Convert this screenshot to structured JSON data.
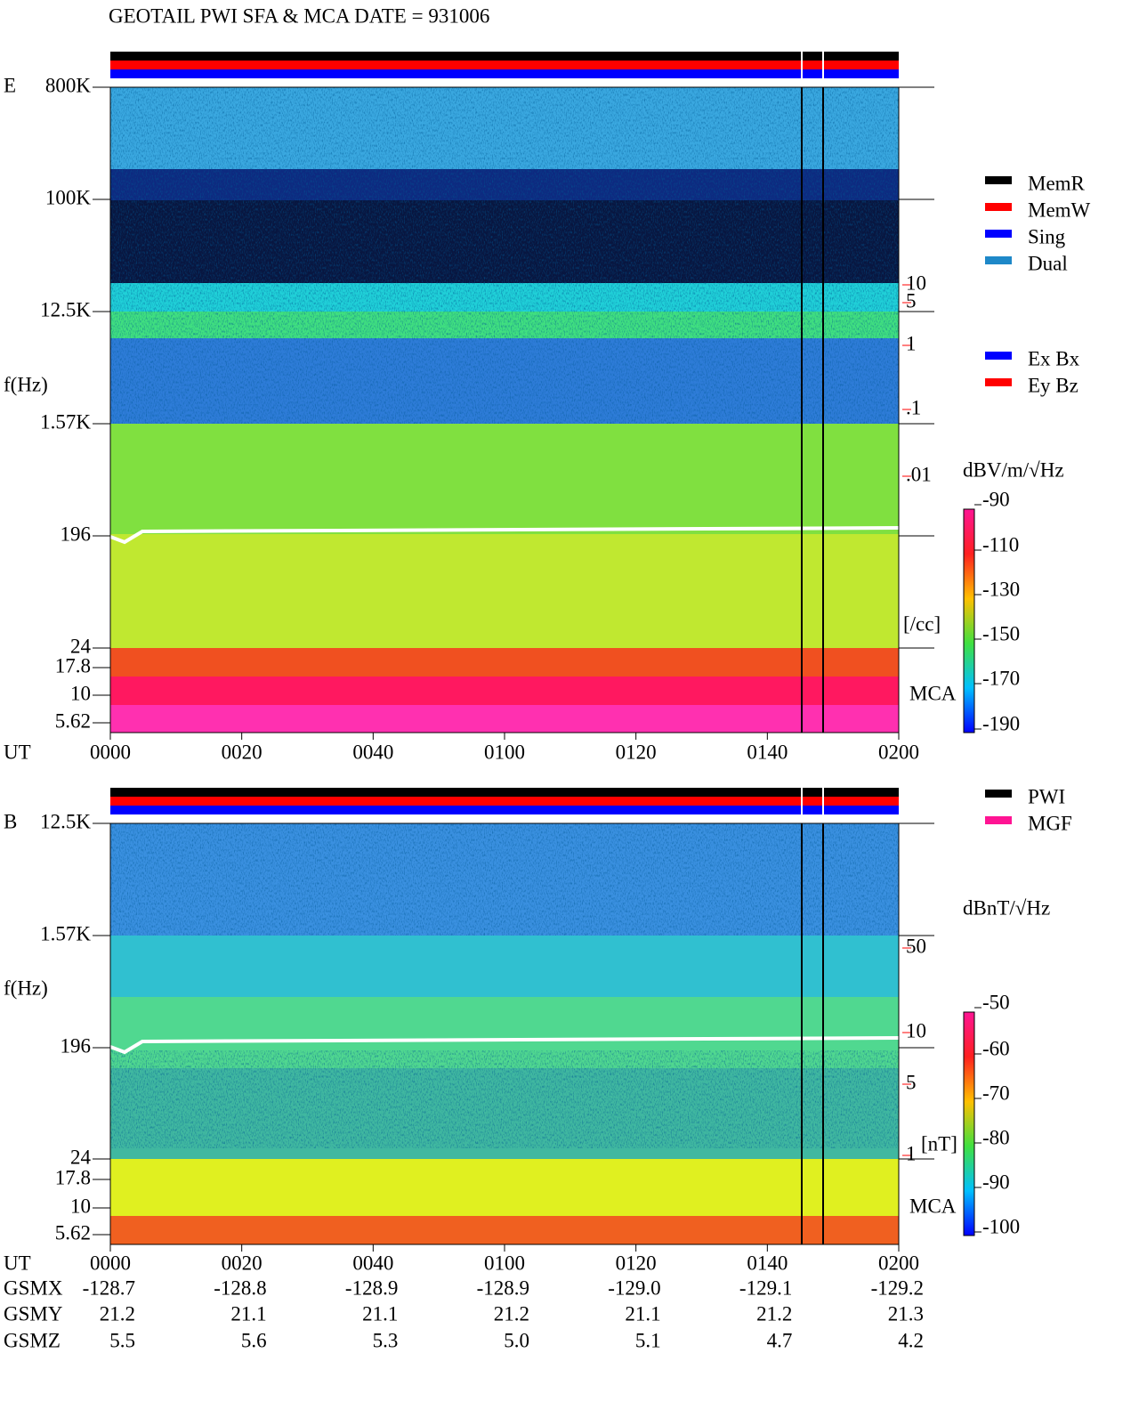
{
  "title": "GEOTAIL  PWI SFA & MCA  DATE = 931006",
  "panels": [
    {
      "label": "E",
      "ylabel": "f(Hz)",
      "freq_ticks": [
        "800K",
        "100K",
        "12.5K",
        "1.57K",
        "196",
        "24",
        "17.8",
        "10",
        "5.62"
      ],
      "density_ticks": [
        "10",
        "5",
        "1",
        ".1",
        ".01"
      ],
      "density_unit": "[/cc]",
      "mca": "MCA",
      "time_label": "UT",
      "times": [
        "0000",
        "0020",
        "0040",
        "0100",
        "0120",
        "0140",
        "0200"
      ],
      "colorbar_title": "dBV/m/√Hz",
      "colorbar_ticks": [
        "-90",
        "-110",
        "-130",
        "-150",
        "-170",
        "-190"
      ]
    },
    {
      "label": "B",
      "ylabel": "f(Hz)",
      "freq_ticks": [
        "12.5K",
        "1.57K",
        "196",
        "24",
        "17.8",
        "10",
        "5.62"
      ],
      "density_ticks": [
        "50",
        "10",
        "5",
        "1"
      ],
      "density_unit": "[nT]",
      "mca": "MCA",
      "time_label": "UT",
      "times": [
        "0000",
        "0020",
        "0040",
        "0100",
        "0120",
        "0140",
        "0200"
      ],
      "colorbar_title": "dBnT/√Hz",
      "colorbar_ticks": [
        "-50",
        "-60",
        "-70",
        "-80",
        "-90",
        "-100"
      ]
    }
  ],
  "mode_legend": [
    {
      "name": "MemR",
      "color": "#000000"
    },
    {
      "name": "MemW",
      "color": "#ff0000"
    },
    {
      "name": "Sing",
      "color": "#0000ff"
    },
    {
      "name": "Dual",
      "color": "#1e88c8"
    }
  ],
  "component_legend": [
    {
      "name": "Ex Bx",
      "color": "#0000ff"
    },
    {
      "name": "Ey Bz",
      "color": "#ff0000"
    }
  ],
  "source_legend": [
    {
      "name": "PWI",
      "color": "#000000"
    },
    {
      "name": "MGF",
      "color": "#ff1493"
    }
  ],
  "orbit": [
    {
      "label": "GSMX",
      "values": [
        "-128.7",
        "-128.8",
        "-128.9",
        "-128.9",
        "-129.0",
        "-129.1",
        "-129.2"
      ]
    },
    {
      "label": "GSMY",
      "values": [
        "21.2",
        "21.1",
        "21.1",
        "21.2",
        "21.1",
        "21.2",
        "21.3"
      ]
    },
    {
      "label": "GSMZ",
      "values": [
        "5.5",
        "5.6",
        "5.3",
        "5.0",
        "5.1",
        "4.7",
        "4.2"
      ]
    }
  ]
}
